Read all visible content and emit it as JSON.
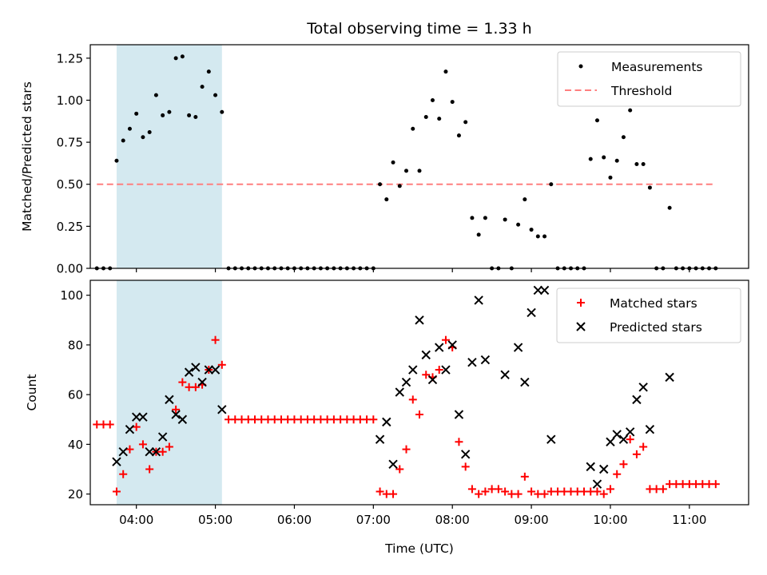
{
  "chart_data": [
    {
      "type": "scatter",
      "title": "Total observing time = 1.33 h",
      "xlabel": "",
      "ylabel": "Matched/Predicted stars",
      "ylim": [
        0,
        1.33
      ],
      "yticks": [
        "0.00",
        "0.25",
        "0.50",
        "0.75",
        "1.00",
        "1.25"
      ],
      "ytick_values": [
        0,
        0.25,
        0.5,
        0.75,
        1.0,
        1.25
      ],
      "xlim": [
        "03:25",
        "11:45"
      ],
      "shaded_interval": [
        "03:45",
        "05:05"
      ],
      "shade_color": "#d4e9f0",
      "legend_position": "top-right",
      "threshold": {
        "name": "Threshold",
        "value": 0.5,
        "x_range": [
          "03:30",
          "11:20"
        ],
        "color": "#ff7f7f"
      },
      "series": [
        {
          "name": "Measurements",
          "color": "#000000",
          "points": [
            [
              "03:30",
              0
            ],
            [
              "03:35",
              0
            ],
            [
              "03:40",
              0
            ],
            [
              "03:45",
              0.64
            ],
            [
              "03:50",
              0.76
            ],
            [
              "03:55",
              0.83
            ],
            [
              "04:00",
              0.92
            ],
            [
              "04:05",
              0.78
            ],
            [
              "04:10",
              0.81
            ],
            [
              "04:15",
              1.03
            ],
            [
              "04:20",
              0.91
            ],
            [
              "04:25",
              0.93
            ],
            [
              "04:30",
              1.25
            ],
            [
              "04:35",
              1.26
            ],
            [
              "04:40",
              0.91
            ],
            [
              "04:45",
              0.9
            ],
            [
              "04:50",
              1.08
            ],
            [
              "04:55",
              1.17
            ],
            [
              "05:00",
              1.03
            ],
            [
              "05:05",
              0.93
            ],
            [
              "05:10",
              0
            ],
            [
              "05:15",
              0
            ],
            [
              "05:20",
              0
            ],
            [
              "05:25",
              0
            ],
            [
              "05:30",
              0
            ],
            [
              "05:35",
              0
            ],
            [
              "05:40",
              0
            ],
            [
              "05:45",
              0
            ],
            [
              "05:50",
              0
            ],
            [
              "05:55",
              0
            ],
            [
              "06:00",
              0
            ],
            [
              "06:05",
              0
            ],
            [
              "06:10",
              0
            ],
            [
              "06:15",
              0
            ],
            [
              "06:20",
              0
            ],
            [
              "06:25",
              0
            ],
            [
              "06:30",
              0
            ],
            [
              "06:35",
              0
            ],
            [
              "06:40",
              0
            ],
            [
              "06:45",
              0
            ],
            [
              "06:50",
              0
            ],
            [
              "06:55",
              0
            ],
            [
              "07:00",
              0
            ],
            [
              "07:05",
              0.5
            ],
            [
              "07:10",
              0.41
            ],
            [
              "07:15",
              0.63
            ],
            [
              "07:20",
              0.49
            ],
            [
              "07:25",
              0.58
            ],
            [
              "07:30",
              0.83
            ],
            [
              "07:35",
              0.58
            ],
            [
              "07:40",
              0.9
            ],
            [
              "07:45",
              1.0
            ],
            [
              "07:50",
              0.89
            ],
            [
              "07:55",
              1.17
            ],
            [
              "08:00",
              0.99
            ],
            [
              "08:05",
              0.79
            ],
            [
              "08:10",
              0.87
            ],
            [
              "08:15",
              0.3
            ],
            [
              "08:20",
              0.2
            ],
            [
              "08:25",
              0.3
            ],
            [
              "08:30",
              0
            ],
            [
              "08:35",
              0
            ],
            [
              "08:40",
              0.29
            ],
            [
              "08:45",
              0
            ],
            [
              "08:50",
              0.26
            ],
            [
              "08:55",
              0.41
            ],
            [
              "09:00",
              0.23
            ],
            [
              "09:05",
              0.19
            ],
            [
              "09:10",
              0.19
            ],
            [
              "09:15",
              0.5
            ],
            [
              "09:20",
              0
            ],
            [
              "09:25",
              0
            ],
            [
              "09:30",
              0
            ],
            [
              "09:35",
              0
            ],
            [
              "09:40",
              0
            ],
            [
              "09:45",
              0.65
            ],
            [
              "09:50",
              0.88
            ],
            [
              "09:55",
              0.66
            ],
            [
              "10:00",
              0.54
            ],
            [
              "10:05",
              0.64
            ],
            [
              "10:10",
              0.78
            ],
            [
              "10:15",
              0.94
            ],
            [
              "10:20",
              0.62
            ],
            [
              "10:25",
              0.62
            ],
            [
              "10:30",
              0.48
            ],
            [
              "10:35",
              0
            ],
            [
              "10:40",
              0
            ],
            [
              "10:45",
              0.36
            ],
            [
              "10:50",
              0
            ],
            [
              "10:55",
              0
            ],
            [
              "11:00",
              0
            ],
            [
              "11:05",
              0
            ],
            [
              "11:10",
              0
            ],
            [
              "11:15",
              0
            ],
            [
              "11:20",
              0
            ]
          ]
        }
      ]
    },
    {
      "type": "scatter",
      "title": "",
      "xlabel": "Time (UTC)",
      "ylabel": "Count",
      "ylim": [
        15.7,
        106
      ],
      "yticks": [
        "20",
        "40",
        "60",
        "80",
        "100"
      ],
      "ytick_values": [
        20,
        40,
        60,
        80,
        100
      ],
      "xlim": [
        "03:25",
        "11:45"
      ],
      "xticks": [
        "04:00",
        "05:00",
        "06:00",
        "07:00",
        "08:00",
        "09:00",
        "10:00",
        "11:00"
      ],
      "shaded_interval": [
        "03:45",
        "05:05"
      ],
      "shade_color": "#d4e9f0",
      "legend_position": "top-right",
      "series": [
        {
          "name": "Matched stars",
          "color": "#ff0000",
          "marker": "plus",
          "points": [
            [
              "03:30",
              48
            ],
            [
              "03:35",
              48
            ],
            [
              "03:40",
              48
            ],
            [
              "03:45",
              21
            ],
            [
              "03:50",
              28
            ],
            [
              "03:55",
              38
            ],
            [
              "04:00",
              47
            ],
            [
              "04:05",
              40
            ],
            [
              "04:10",
              30
            ],
            [
              "04:15",
              37
            ],
            [
              "04:20",
              37
            ],
            [
              "04:25",
              39
            ],
            [
              "04:30",
              54
            ],
            [
              "04:35",
              65
            ],
            [
              "04:40",
              63
            ],
            [
              "04:45",
              63
            ],
            [
              "04:50",
              64
            ],
            [
              "04:55",
              70
            ],
            [
              "05:00",
              82
            ],
            [
              "05:05",
              72
            ],
            [
              "05:10",
              50
            ],
            [
              "05:15",
              50
            ],
            [
              "05:20",
              50
            ],
            [
              "05:25",
              50
            ],
            [
              "05:30",
              50
            ],
            [
              "05:35",
              50
            ],
            [
              "05:40",
              50
            ],
            [
              "05:45",
              50
            ],
            [
              "05:50",
              50
            ],
            [
              "05:55",
              50
            ],
            [
              "06:00",
              50
            ],
            [
              "06:05",
              50
            ],
            [
              "06:10",
              50
            ],
            [
              "06:15",
              50
            ],
            [
              "06:20",
              50
            ],
            [
              "06:25",
              50
            ],
            [
              "06:30",
              50
            ],
            [
              "06:35",
              50
            ],
            [
              "06:40",
              50
            ],
            [
              "06:45",
              50
            ],
            [
              "06:50",
              50
            ],
            [
              "06:55",
              50
            ],
            [
              "07:00",
              50
            ],
            [
              "07:05",
              21
            ],
            [
              "07:10",
              20
            ],
            [
              "07:15",
              20
            ],
            [
              "07:20",
              30
            ],
            [
              "07:25",
              38
            ],
            [
              "07:30",
              58
            ],
            [
              "07:35",
              52
            ],
            [
              "07:40",
              68
            ],
            [
              "07:45",
              67
            ],
            [
              "07:50",
              70
            ],
            [
              "07:55",
              82
            ],
            [
              "08:00",
              79
            ],
            [
              "08:05",
              41
            ],
            [
              "08:10",
              31
            ],
            [
              "08:15",
              22
            ],
            [
              "08:20",
              20
            ],
            [
              "08:25",
              21
            ],
            [
              "08:30",
              22
            ],
            [
              "08:35",
              22
            ],
            [
              "08:40",
              21
            ],
            [
              "08:45",
              20
            ],
            [
              "08:50",
              20
            ],
            [
              "08:55",
              27
            ],
            [
              "09:00",
              21
            ],
            [
              "09:05",
              20
            ],
            [
              "09:10",
              20
            ],
            [
              "09:15",
              21
            ],
            [
              "09:20",
              21
            ],
            [
              "09:25",
              21
            ],
            [
              "09:30",
              21
            ],
            [
              "09:35",
              21
            ],
            [
              "09:40",
              21
            ],
            [
              "09:45",
              21
            ],
            [
              "09:50",
              21
            ],
            [
              "09:55",
              20
            ],
            [
              "10:00",
              22
            ],
            [
              "10:05",
              28
            ],
            [
              "10:10",
              32
            ],
            [
              "10:15",
              42
            ],
            [
              "10:20",
              36
            ],
            [
              "10:25",
              39
            ],
            [
              "10:30",
              22
            ],
            [
              "10:35",
              22
            ],
            [
              "10:40",
              22
            ],
            [
              "10:45",
              24
            ],
            [
              "10:50",
              24
            ],
            [
              "10:55",
              24
            ],
            [
              "11:00",
              24
            ],
            [
              "11:05",
              24
            ],
            [
              "11:10",
              24
            ],
            [
              "11:15",
              24
            ],
            [
              "11:20",
              24
            ]
          ]
        },
        {
          "name": "Predicted stars",
          "color": "#000000",
          "marker": "x",
          "points": [
            [
              "03:45",
              33
            ],
            [
              "03:50",
              37
            ],
            [
              "03:55",
              46
            ],
            [
              "04:00",
              51
            ],
            [
              "04:05",
              51
            ],
            [
              "04:10",
              37
            ],
            [
              "04:15",
              37
            ],
            [
              "04:20",
              43
            ],
            [
              "04:25",
              58
            ],
            [
              "04:30",
              52
            ],
            [
              "04:35",
              50
            ],
            [
              "04:40",
              69
            ],
            [
              "04:45",
              71
            ],
            [
              "04:50",
              65
            ],
            [
              "04:55",
              70
            ],
            [
              "05:00",
              70
            ],
            [
              "05:05",
              54
            ],
            [
              "07:05",
              42
            ],
            [
              "07:10",
              49
            ],
            [
              "07:15",
              32
            ],
            [
              "07:20",
              61
            ],
            [
              "07:25",
              65
            ],
            [
              "07:30",
              70
            ],
            [
              "07:35",
              90
            ],
            [
              "07:40",
              76
            ],
            [
              "07:45",
              66
            ],
            [
              "07:50",
              79
            ],
            [
              "07:55",
              70
            ],
            [
              "08:00",
              80
            ],
            [
              "08:05",
              52
            ],
            [
              "08:10",
              36
            ],
            [
              "08:15",
              73
            ],
            [
              "08:20",
              98
            ],
            [
              "08:25",
              74
            ],
            [
              "08:40",
              68
            ],
            [
              "08:50",
              79
            ],
            [
              "08:55",
              65
            ],
            [
              "09:00",
              93
            ],
            [
              "09:05",
              102
            ],
            [
              "09:10",
              102
            ],
            [
              "09:15",
              42
            ],
            [
              "09:45",
              31
            ],
            [
              "09:50",
              24
            ],
            [
              "09:55",
              30
            ],
            [
              "10:00",
              41
            ],
            [
              "10:05",
              44
            ],
            [
              "10:10",
              42
            ],
            [
              "10:15",
              45
            ],
            [
              "10:20",
              58
            ],
            [
              "10:25",
              63
            ],
            [
              "10:30",
              46
            ],
            [
              "10:45",
              67
            ]
          ]
        }
      ]
    }
  ]
}
